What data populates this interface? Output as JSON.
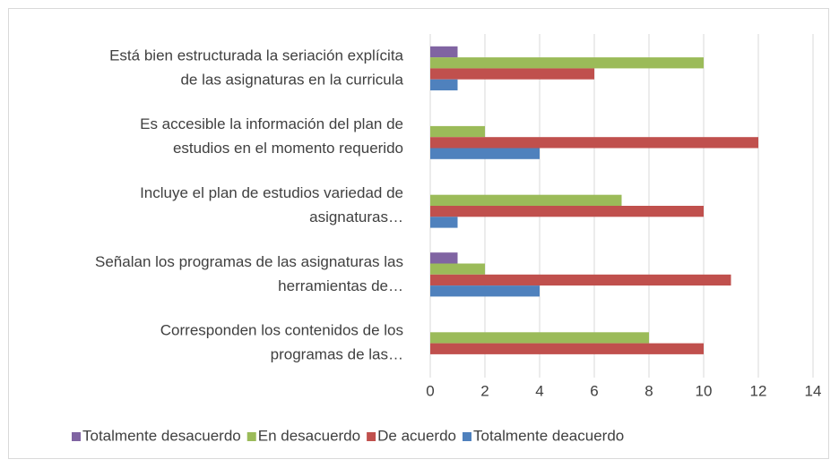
{
  "chart_data": {
    "type": "hbar",
    "categories": [
      [
        "Está bien estructurada la seriación explícita",
        "de las asignaturas en la curricula"
      ],
      [
        "Es accesible la información del plan de",
        "estudios en el momento requerido"
      ],
      [
        "Incluye el plan de estudios  variedad de",
        "asignaturas…"
      ],
      [
        "Señalan los programas de las asignaturas las",
        "herramientas de…"
      ],
      [
        "Corresponden los contenidos de los",
        "programas de las…"
      ]
    ],
    "series": [
      {
        "name": "Totalmente desacuerdo",
        "color": "#8064a2",
        "values": [
          1,
          0,
          0,
          1,
          0
        ]
      },
      {
        "name": "En desacuerdo",
        "color": "#9bbb59",
        "values": [
          10,
          2,
          7,
          2,
          8
        ]
      },
      {
        "name": "De acuerdo",
        "color": "#c0504d",
        "values": [
          6,
          12,
          10,
          11,
          10
        ]
      },
      {
        "name": "Totalmente deacuerdo",
        "color": "#4f81bd",
        "values": [
          1,
          4,
          1,
          4,
          0
        ]
      }
    ],
    "xlim": [
      0,
      14
    ],
    "xticks": [
      0,
      2,
      4,
      6,
      8,
      10,
      12,
      14
    ],
    "grid": true,
    "legend": "bottom"
  }
}
